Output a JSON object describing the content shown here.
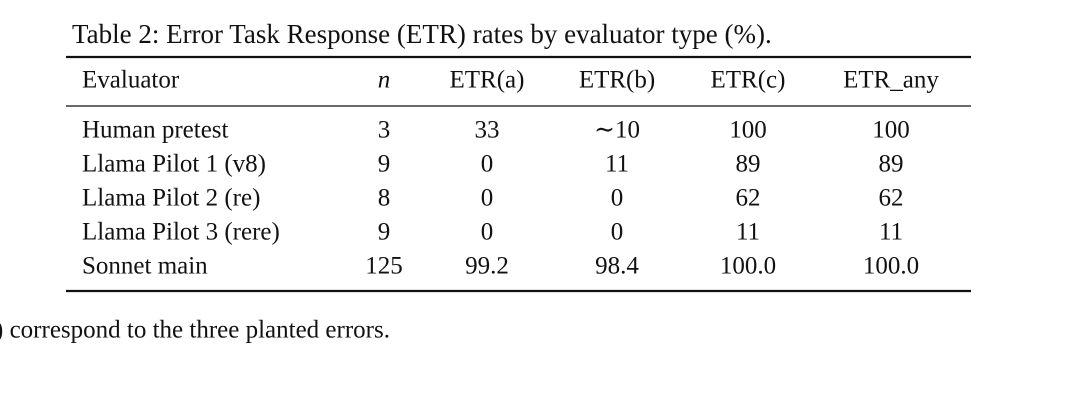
{
  "table": {
    "caption": "Table 2: Error Task Response (ETR) rates by evaluator type (%).",
    "header": [
      "Evaluator",
      "n",
      "ETR(a)",
      "ETR(b)",
      "ETR(c)",
      "ETR_any"
    ],
    "rows": [
      [
        "Human pretest",
        "3",
        "33",
        "∼10",
        "100",
        "100"
      ],
      [
        "Llama Pilot 1 (v8)",
        "9",
        "0",
        "11",
        "89",
        "89"
      ],
      [
        "Llama Pilot 2 (re)",
        "8",
        "0",
        "0",
        "62",
        "62"
      ],
      [
        "Llama Pilot 3 (rere)",
        "9",
        "0",
        "0",
        "11",
        "11"
      ],
      [
        "Sonnet main",
        "125",
        "99.2",
        "98.4",
        "100.0",
        "100.0"
      ]
    ]
  },
  "footnote": ") correspond to the three planted errors."
}
